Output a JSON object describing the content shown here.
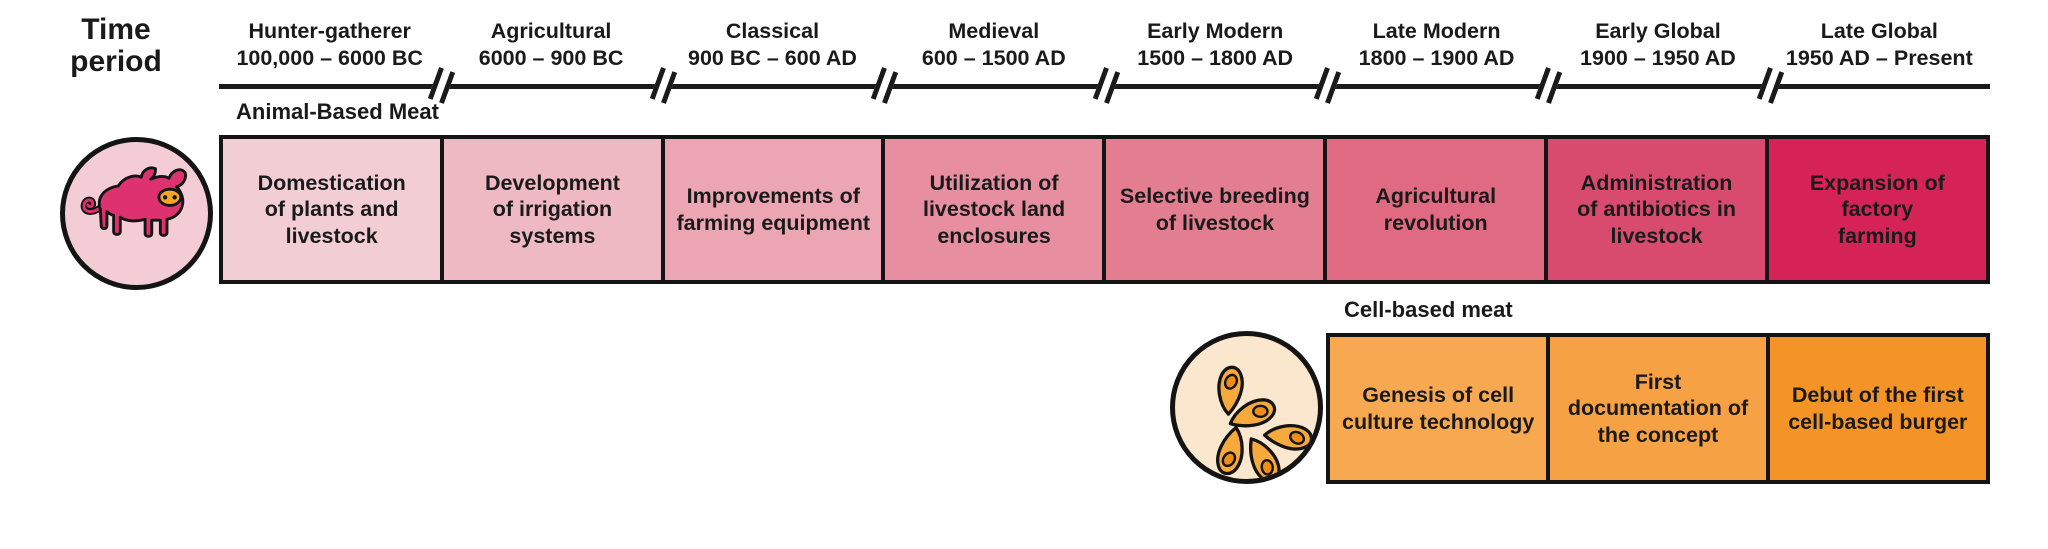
{
  "header": {
    "row_label_line1": "Time",
    "row_label_line2": "period"
  },
  "timeline": {
    "periods": [
      {
        "name": "Hunter-gatherer",
        "years": "100,000 – 6000 BC"
      },
      {
        "name": "Agricultural",
        "years": "6000 – 900 BC"
      },
      {
        "name": "Classical",
        "years": "900 BC – 600 AD"
      },
      {
        "name": "Medieval",
        "years": "600 – 1500 AD"
      },
      {
        "name": "Early Modern",
        "years": "1500 – 1800 AD"
      },
      {
        "name": "Late Modern",
        "years": "1800 – 1900 AD"
      },
      {
        "name": "Early Global",
        "years": "1900 – 1950 AD"
      },
      {
        "name": "Late Global",
        "years": "1950 AD – Present"
      }
    ]
  },
  "animal_row": {
    "label": "Animal-Based Meat",
    "icon": "pig-icon",
    "events": [
      {
        "text": "Domestication\nof plants and\nlivestock"
      },
      {
        "text": "Development\nof irrigation systems"
      },
      {
        "text": "Improvements of\nfarming equipment"
      },
      {
        "text": "Utilization of\nlivestock land\nenclosures"
      },
      {
        "text": "Selective breeding\nof livestock"
      },
      {
        "text": "Agricultural\nrevolution"
      },
      {
        "text": "Administration\nof antibiotics in\nlivestock"
      },
      {
        "text": "Expansion of factory\nfarming"
      }
    ]
  },
  "cell_row": {
    "label": "Cell-based meat",
    "icon": "cell-cluster-icon",
    "start_period": "Late Modern",
    "events": [
      {
        "text": "Genesis of cell\nculture technology"
      },
      {
        "text": "First\ndocumentation of\nthe concept"
      },
      {
        "text": "Debut of the first\ncell-based burger"
      }
    ]
  },
  "colors": {
    "text": "#1a1a1a",
    "axis_line": "#1a1a1a",
    "animal_gradient": [
      "#f2cdd4",
      "#efb9c3",
      "#eca5b2",
      "#e78fa0",
      "#e37d90",
      "#df6a81",
      "#d94b6e",
      "#d52357"
    ],
    "cell_gradient": [
      "#f6a950",
      "#f5a144",
      "#f49426"
    ],
    "pig_circle_bg": "#f4ccd6",
    "pig_body": "#dd3170",
    "pig_snout": "#f5a623",
    "cell_circle_bg": "#fbe7cd",
    "cell_body": "#f6a93c",
    "cell_nucleus": "#ef8d15"
  }
}
